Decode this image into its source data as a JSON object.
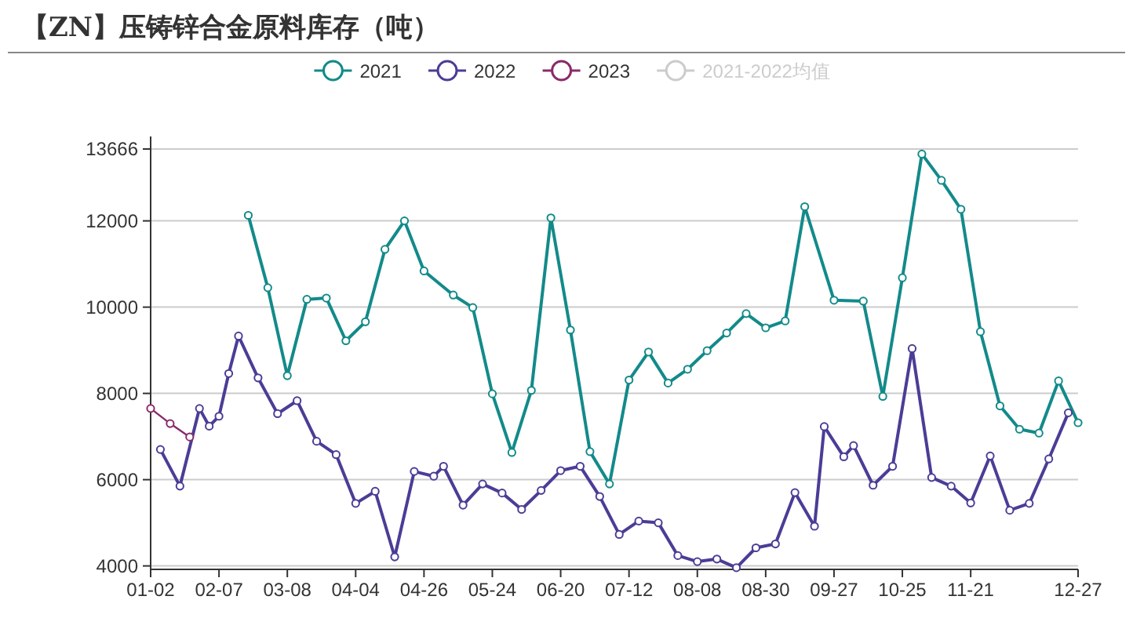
{
  "chart_data": {
    "type": "line",
    "title": "【ZN】压铸锌合金原料库存（吨）",
    "categories": [
      "01-02",
      null,
      null,
      null,
      null,
      null,
      null,
      "02-07",
      null,
      null,
      null,
      null,
      null,
      null,
      "03-08",
      null,
      null,
      null,
      null,
      null,
      null,
      "04-04",
      null,
      null,
      null,
      null,
      null,
      null,
      "04-26",
      null,
      null,
      null,
      null,
      null,
      null,
      "05-24",
      null,
      null,
      null,
      null,
      null,
      null,
      "06-20",
      null,
      null,
      null,
      null,
      null,
      null,
      "07-12",
      null,
      null,
      null,
      null,
      null,
      null,
      "08-08",
      null,
      null,
      null,
      null,
      null,
      null,
      "08-30",
      null,
      null,
      null,
      null,
      null,
      null,
      "09-27",
      null,
      null,
      null,
      null,
      null,
      null,
      "10-25",
      null,
      null,
      null,
      null,
      null,
      null,
      "11-21",
      null,
      null,
      null,
      null,
      null,
      null,
      null,
      null,
      null,
      null,
      "12-27"
    ],
    "series": [
      {
        "name": "2021",
        "color": "#138a8a",
        "values": [
          null,
          null,
          null,
          null,
          null,
          null,
          null,
          null,
          null,
          null,
          12130,
          null,
          10450,
          null,
          8410,
          null,
          10180,
          null,
          10210,
          null,
          9220,
          null,
          9660,
          null,
          11340,
          null,
          12000,
          null,
          10840,
          null,
          null,
          10280,
          null,
          9990,
          null,
          7990,
          null,
          6630,
          null,
          8070,
          null,
          12070,
          null,
          9470,
          null,
          6650,
          null,
          5900,
          null,
          8310,
          null,
          8960,
          null,
          8240,
          null,
          8560,
          null,
          8990,
          null,
          9400,
          null,
          9850,
          null,
          9520,
          null,
          9680,
          null,
          12330,
          null,
          null,
          10160,
          null,
          null,
          10140,
          null,
          7930,
          null,
          10680,
          null,
          13550,
          null,
          12940,
          null,
          12270,
          null,
          9430,
          null,
          7710,
          null,
          7170,
          null,
          7080,
          null,
          8290,
          null,
          7320
        ]
      },
      {
        "name": "2022",
        "color": "#4b3d96",
        "values": [
          null,
          6700,
          null,
          5850,
          null,
          7650,
          7240,
          7470,
          8460,
          9330,
          null,
          8360,
          null,
          7530,
          null,
          7830,
          null,
          6890,
          null,
          6580,
          null,
          5450,
          null,
          5730,
          null,
          4210,
          null,
          6190,
          null,
          6080,
          6310,
          null,
          5410,
          null,
          5900,
          null,
          5690,
          null,
          5310,
          null,
          5750,
          null,
          6210,
          null,
          6310,
          null,
          5610,
          null,
          4730,
          null,
          5040,
          null,
          5000,
          null,
          4240,
          null,
          4100,
          null,
          4160,
          null,
          3960,
          null,
          4420,
          null,
          4510,
          null,
          5700,
          null,
          4920,
          7230,
          null,
          6530,
          6790,
          null,
          5870,
          null,
          6310,
          null,
          9040,
          null,
          6050,
          null,
          5850,
          null,
          5460,
          null,
          6550,
          null,
          5290,
          null,
          5450,
          null,
          6480,
          null,
          7550,
          null
        ]
      },
      {
        "name": "2023",
        "color": "#8a2a6a",
        "values": [
          7650,
          null,
          7300,
          null,
          6990,
          null,
          null,
          null,
          null,
          null,
          null,
          null,
          null,
          null,
          null,
          null,
          null,
          null,
          null,
          null,
          null,
          null,
          null,
          null,
          null,
          null,
          null,
          null,
          null,
          null,
          null,
          null,
          null,
          null,
          null,
          null,
          null,
          null,
          null,
          null,
          null,
          null,
          null,
          null,
          null,
          null,
          null,
          null,
          null,
          null,
          null,
          null,
          null,
          null,
          null,
          null,
          null,
          null,
          null,
          null,
          null,
          null,
          null,
          null,
          null,
          null,
          null,
          null,
          null,
          null,
          null,
          null,
          null,
          null,
          null,
          null,
          null,
          null,
          null,
          null,
          null,
          null,
          null,
          null,
          null,
          null,
          null,
          null,
          null,
          null,
          null,
          null,
          null,
          null,
          null,
          null
        ]
      },
      {
        "name": "2021-2022均值",
        "color": "#cccccc",
        "values": [
          null,
          null,
          null,
          null,
          null,
          null,
          null,
          null,
          null,
          null,
          null,
          null,
          null,
          null,
          null,
          null,
          null,
          null,
          null,
          null,
          null,
          null,
          null,
          null,
          null,
          null,
          null,
          null,
          null,
          null,
          null,
          null,
          null,
          null,
          null,
          null,
          null,
          null,
          null,
          null,
          null,
          null,
          null,
          null,
          null,
          null,
          null,
          null,
          null,
          null,
          null,
          null,
          null,
          null,
          null,
          null,
          null,
          null,
          null,
          null,
          null,
          null,
          null,
          null,
          null,
          null,
          null,
          null,
          null,
          null,
          null,
          null,
          null,
          null,
          null,
          null,
          null,
          null,
          null,
          null,
          null,
          null,
          null,
          null,
          null,
          null,
          null,
          null,
          null,
          null,
          null,
          null,
          null,
          null,
          null,
          null
        ]
      }
    ],
    "ylim": [
      3920,
      13666
    ],
    "yticks": [
      4000,
      6000,
      8000,
      10000,
      12000,
      13666
    ],
    "grid": "y",
    "legend": "top",
    "marker": "circle"
  }
}
